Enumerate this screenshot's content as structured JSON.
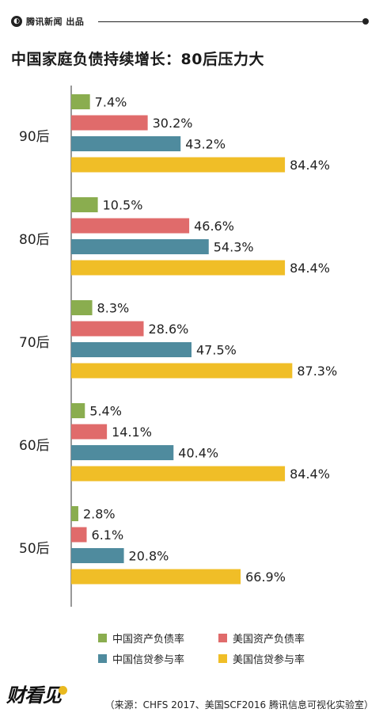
{
  "header": {
    "brand": "腾讯新闻 出品",
    "title": "中国家庭负债持续增长：80后压力大"
  },
  "colors": {
    "green": "#8aad4f",
    "red": "#e06b6b",
    "teal": "#4f8b9e",
    "yellow": "#f0be27"
  },
  "chart_data": {
    "type": "bar",
    "orientation": "horizontal",
    "title": "中国家庭负债持续增长：80后压力大",
    "categories": [
      "90后",
      "80后",
      "70后",
      "60后",
      "50后"
    ],
    "series": [
      {
        "name": "中国资产负债率",
        "color": "#8aad4f",
        "values": [
          7.4,
          10.5,
          8.3,
          5.4,
          2.8
        ],
        "labels": [
          "7.4%",
          "10.5%",
          "8.3%",
          "5.4%",
          "2.8%"
        ]
      },
      {
        "name": "美国资产负债率",
        "color": "#e06b6b",
        "values": [
          30.2,
          46.6,
          28.6,
          14.1,
          6.1
        ],
        "labels": [
          "30.2%",
          "46.6%",
          "28.6%",
          "14.1%",
          "6.1%"
        ]
      },
      {
        "name": "中国信贷参与率",
        "color": "#4f8b9e",
        "values": [
          43.2,
          54.3,
          47.5,
          40.4,
          20.8
        ],
        "labels": [
          "43.2%",
          "54.3%",
          "47.5%",
          "40.4%",
          "20.8%"
        ]
      },
      {
        "name": "美国信贷参与率",
        "color": "#f0be27",
        "values": [
          84.4,
          84.4,
          87.3,
          84.4,
          66.9
        ],
        "labels": [
          "84.4%",
          "84.4%",
          "87.3%",
          "84.4%",
          "66.9%"
        ]
      }
    ],
    "legend_position": "bottom",
    "grid": false
  },
  "footer": {
    "logo": "财看见",
    "source": "（来源：CHFS 2017、美国SCF2016 腾讯信息可视化实验室）"
  }
}
